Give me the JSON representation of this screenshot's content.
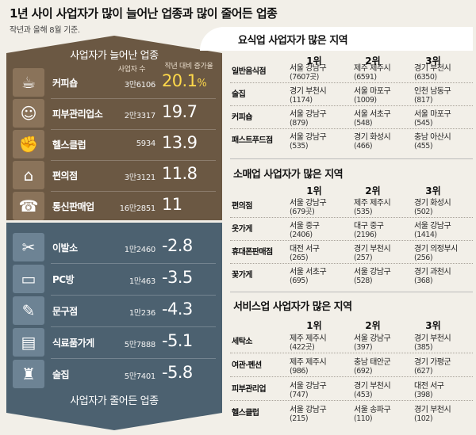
{
  "title": "1년 사이 사업자가 많이 늘어난 업종과 많이 줄어든 업종",
  "subtitle": "작년과 올해 8월 기준.",
  "increased": {
    "title": "사업자가 늘어난 업종",
    "col_count": "사업자 수",
    "col_rate": "작년 대비 증가율",
    "rows": [
      {
        "name": "커피숍",
        "count": "3만6106",
        "rate": "20.1",
        "unit": "%",
        "icon": "coffee-cup-icon"
      },
      {
        "name": "피부관리업소",
        "count": "2만3317",
        "rate": "19.7",
        "unit": "",
        "icon": "skin-care-icon"
      },
      {
        "name": "헬스클럽",
        "count": "5934",
        "rate": "13.9",
        "unit": "",
        "icon": "dumbbell-icon"
      },
      {
        "name": "편의점",
        "count": "3만3121",
        "rate": "11.8",
        "unit": "",
        "icon": "store-counter-icon"
      },
      {
        "name": "통신판매업",
        "count": "16만2851",
        "rate": "11",
        "unit": "",
        "icon": "headset-icon"
      }
    ]
  },
  "decreased": {
    "title": "사업자가 줄어든 업종",
    "rows": [
      {
        "name": "이발소",
        "count": "1만2460",
        "rate": "-2.8",
        "icon": "scissors-icon"
      },
      {
        "name": "PC방",
        "count": "1만463",
        "rate": "-3.5",
        "icon": "computer-icon"
      },
      {
        "name": "문구점",
        "count": "1만236",
        "rate": "-4.3",
        "icon": "stationery-icon"
      },
      {
        "name": "식료품가게",
        "count": "5만7888",
        "rate": "-5.1",
        "icon": "grocery-bag-icon"
      },
      {
        "name": "술집",
        "count": "5만7401",
        "rate": "-5.8",
        "icon": "bottle-icon"
      }
    ]
  },
  "ranks": [
    "1위",
    "2위",
    "3위"
  ],
  "sections": [
    {
      "title": "요식업 사업자가 많은 지역",
      "rows": [
        {
          "cat": "일반음식점",
          "cells": [
            [
              "서울 강남구",
              "(7607곳)"
            ],
            [
              "제주 제주시",
              "(6591)"
            ],
            [
              "경기 부천시",
              "(6350)"
            ]
          ]
        },
        {
          "cat": "술집",
          "cells": [
            [
              "경기 부천시",
              "(1174)"
            ],
            [
              "서울 마포구",
              "(1009)"
            ],
            [
              "인천 남동구",
              "(817)"
            ]
          ]
        },
        {
          "cat": "커피숍",
          "cells": [
            [
              "서울 강남구",
              "(879)"
            ],
            [
              "서울 서초구",
              "(548)"
            ],
            [
              "서울 마포구",
              "(545)"
            ]
          ]
        },
        {
          "cat": "패스트푸드점",
          "cells": [
            [
              "서울 강남구",
              "(535)"
            ],
            [
              "경기 화성시",
              "(466)"
            ],
            [
              "충남 아산시",
              "(455)"
            ]
          ]
        }
      ]
    },
    {
      "title": "소매업 사업자가 많은 지역",
      "rows": [
        {
          "cat": "편의점",
          "cells": [
            [
              "서울 강남구",
              "(679곳)"
            ],
            [
              "제주 제주시",
              "(535)"
            ],
            [
              "경기 화성시",
              "(502)"
            ]
          ]
        },
        {
          "cat": "옷가게",
          "cells": [
            [
              "서울 중구",
              "(2406)"
            ],
            [
              "대구 중구",
              "(2196)"
            ],
            [
              "서울 강남구",
              "(1414)"
            ]
          ]
        },
        {
          "cat": "휴대폰판매점",
          "cells": [
            [
              "대전 서구",
              "(265)"
            ],
            [
              "경기 부천시",
              "(257)"
            ],
            [
              "경기 의정부시",
              "(256)"
            ]
          ]
        },
        {
          "cat": "꽃가게",
          "cells": [
            [
              "서울 서초구",
              "(695)"
            ],
            [
              "서울 강남구",
              "(528)"
            ],
            [
              "경기 과천시",
              "(368)"
            ]
          ]
        }
      ]
    },
    {
      "title": "서비스업 사업자가 많은 지역",
      "rows": [
        {
          "cat": "세탁소",
          "cells": [
            [
              "제주 제주시",
              "(422곳)"
            ],
            [
              "서울 강남구",
              "(397)"
            ],
            [
              "경기 부천시",
              "(385)"
            ]
          ]
        },
        {
          "cat": "여관·펜션",
          "cells": [
            [
              "제주 제주시",
              "(986)"
            ],
            [
              "충남 태안군",
              "(692)"
            ],
            [
              "경기 가평군",
              "(627)"
            ]
          ]
        },
        {
          "cat": "피부관리업",
          "cells": [
            [
              "서울 강남구",
              "(747)"
            ],
            [
              "경기 부천시",
              "(453)"
            ],
            [
              "대전 서구",
              "(398)"
            ]
          ]
        },
        {
          "cat": "헬스클럽",
          "cells": [
            [
              "서울 강남구",
              "(215)"
            ],
            [
              "서울 송파구",
              "(110)"
            ],
            [
              "경기 부천시",
              "(102)"
            ]
          ]
        }
      ]
    }
  ]
}
